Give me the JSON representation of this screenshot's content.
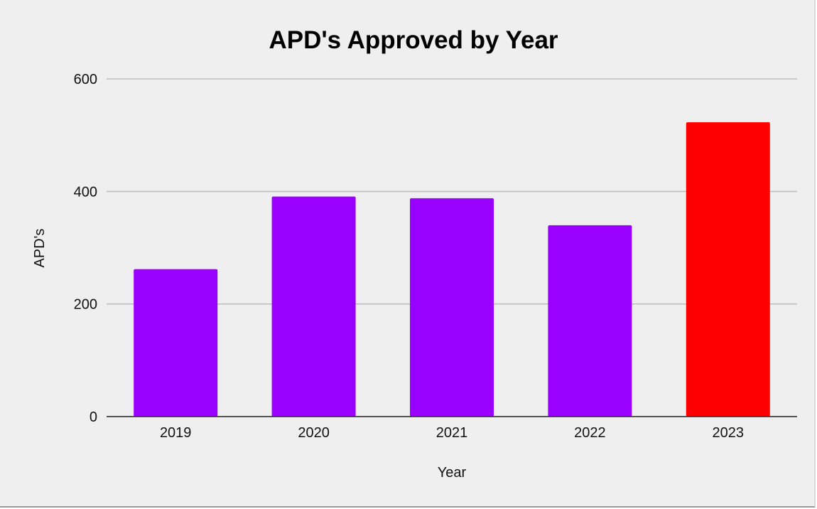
{
  "chart_data": {
    "type": "bar",
    "title": "APD's Approved by Year",
    "xlabel": "Year",
    "ylabel": "APD's",
    "categories": [
      "2019",
      "2020",
      "2021",
      "2022",
      "2023"
    ],
    "values": [
      262,
      391,
      388,
      340,
      523
    ],
    "colors": [
      "#9900ff",
      "#9900ff",
      "#9900ff",
      "#9900ff",
      "#ff0000"
    ],
    "ylim": [
      0,
      600
    ],
    "yticks": [
      0,
      200,
      400,
      600
    ],
    "grid": true,
    "legend": "none"
  }
}
